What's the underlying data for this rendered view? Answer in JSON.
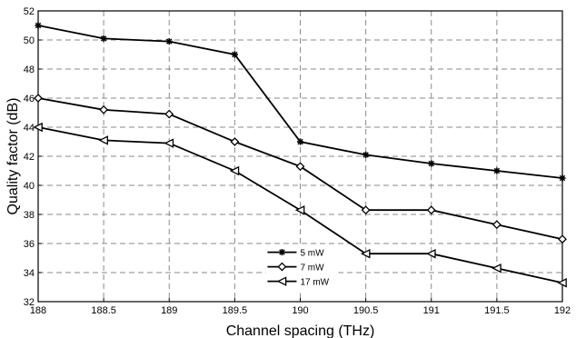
{
  "chart_data": {
    "type": "line",
    "title": "",
    "xlabel": "Channel spacing (THz)",
    "ylabel": "Quality factor (dB)",
    "xlim": [
      188,
      192
    ],
    "ylim": [
      32,
      52
    ],
    "xticks": [
      188,
      188.5,
      189,
      189.5,
      190,
      190.5,
      191,
      191.5,
      192
    ],
    "yticks": [
      32,
      34,
      36,
      38,
      40,
      42,
      44,
      46,
      48,
      50,
      52
    ],
    "grid": true,
    "legend_position": "bottom-center",
    "x": [
      188,
      188.5,
      189,
      189.5,
      190,
      190.5,
      191,
      191.5,
      192
    ],
    "series": [
      {
        "name": "5 mW",
        "marker": "asterisk",
        "values": [
          51,
          50.1,
          49.9,
          49,
          43,
          42.1,
          41.5,
          41,
          40.5
        ]
      },
      {
        "name": "7 mW",
        "marker": "diamond",
        "values": [
          46,
          45.2,
          44.9,
          43,
          41.3,
          38.3,
          38.3,
          37.3,
          36.3
        ]
      },
      {
        "name": "17 mW",
        "marker": "triangle-left",
        "values": [
          44,
          43.1,
          42.9,
          41,
          38.3,
          35.3,
          35.3,
          34.3,
          33.3
        ]
      }
    ]
  }
}
